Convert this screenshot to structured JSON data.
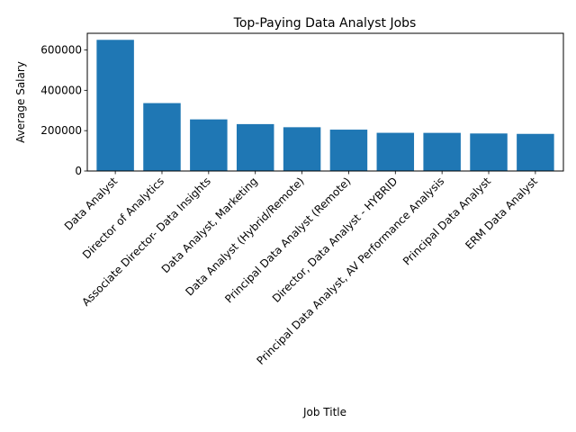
{
  "chart_data": {
    "type": "bar",
    "title": "Top-Paying Data Analyst Jobs",
    "xlabel": "Job Title",
    "ylabel": "Average Salary",
    "categories": [
      "Data Analyst",
      "Director of Analytics",
      "Associate Director- Data Insights",
      "Data Analyst, Marketing",
      "Data Analyst (Hybrid/Remote)",
      "Principal Data Analyst (Remote)",
      "Director, Data Analyst - HYBRID",
      "Principal Data Analyst, AV Performance Analysis",
      "Principal Data Analyst",
      "ERM Data Analyst"
    ],
    "values": [
      650000,
      336500,
      255830,
      232423,
      217000,
      205000,
      189309,
      189000,
      186000,
      184000
    ],
    "ylim": [
      0,
      682500
    ],
    "yticks": [
      0,
      200000,
      400000,
      600000
    ],
    "ytick_labels": [
      "0",
      "200000",
      "400000",
      "600000"
    ],
    "bar_color": "#1f77b4",
    "grid": false,
    "legend": "none"
  }
}
